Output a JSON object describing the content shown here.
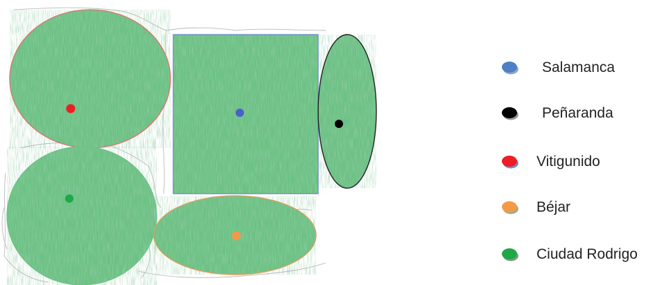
{
  "map": {
    "fill_color": "#6cc184",
    "texture_color": "#4e9e66",
    "boundary_color": "#b9b9b9"
  },
  "zones": [
    {
      "name": "Vitigunido",
      "shape": "ellipse",
      "dot_color": "#ee1c25",
      "outline_color": "#d9776f"
    },
    {
      "name": "Salamanca",
      "shape": "rectangle",
      "dot_color": "#4b5fc8",
      "outline_color": "#6f8fc6"
    },
    {
      "name": "Peñaranda",
      "shape": "ellipse",
      "dot_color": "#000000",
      "outline_color": "#222222"
    },
    {
      "name": "Ciudad Rodrigo",
      "shape": "ellipse",
      "dot_color": "#1fa84a",
      "outline_color": "#6cc184"
    },
    {
      "name": "Béjar",
      "shape": "ellipse",
      "dot_color": "#f39a49",
      "outline_color": "#d9a15d"
    }
  ],
  "legend": [
    {
      "label": "Salamanca",
      "color": "#4f7fc4",
      "shadow_color": "#8fa6c8"
    },
    {
      "label": "Peñaranda",
      "color": "#000000",
      "shadow_color": "#9a9a9a"
    },
    {
      "label": "Vitigunido",
      "color": "#ee1c25",
      "shadow_color": "#6f8fc6"
    },
    {
      "label": "Béjar",
      "color": "#f39a49",
      "shadow_color": "#9ab08a"
    },
    {
      "label": "Ciudad Rodrigo",
      "color": "#1fa84a",
      "shadow_color": "#7e9e7e"
    }
  ]
}
